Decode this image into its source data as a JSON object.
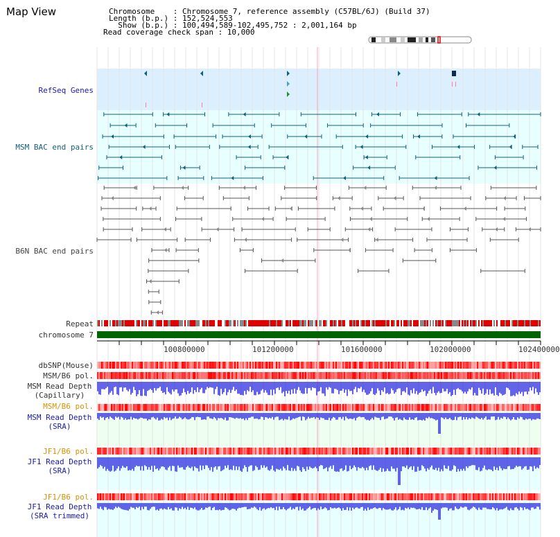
{
  "header": {
    "title": "Map View",
    "chromosome_line": "Chromosome    : Chromosome 7, reference assembly (C57BL/6J) (Build 37)",
    "length_line": "Length (b.p.) : 152,524,553",
    "show_line": "  Show (b.p.) : 100,494,589-102,495,752 : 2,001,164 bp",
    "span_line": "Read coverage check span : 10,000"
  },
  "tracks": {
    "refseq": "RefSeq Genes",
    "msm_bac": "MSM BAC end pairs",
    "b6n_bac": "B6N BAC end pairs",
    "repeat": "Repeat",
    "chromosome": "chromosome 7",
    "dbsnp": "dbSNP(Mouse)",
    "msm_b6_pol_1": "MSM/B6 pol.",
    "msm_depth_cap_1": "MSM Read Depth",
    "msm_depth_cap_2": "(Capillary)",
    "msm_b6_pol_2": "MSM/B6 pol.",
    "msm_depth_sra_1": "MSM Read Depth",
    "msm_depth_sra_2": "(SRA)",
    "jf1_b6_pol_1": "JF1/B6 pol.",
    "jf1_depth_sra_1": "JF1 Read Depth",
    "jf1_depth_sra_2": "(SRA)",
    "jf1_b6_pol_2": "JF1/B6 pol.",
    "jf1_depth_trim_1": "JF1 Read Depth",
    "jf1_depth_trim_2": "(SRA trimmed)"
  },
  "axis": {
    "ticks": [
      "100800000",
      "101200000",
      "101600000",
      "102000000",
      "102400000"
    ]
  },
  "colors": {
    "refseq_bg": "#dcefff",
    "msm_bac_bg": "#e8ffff",
    "msm_feature": "#11607a",
    "b6n_feature": "#555555",
    "repeat_red": "#e00000",
    "chromosome_green": "#006400",
    "pol_red": "#ff3030",
    "depth_blue": "#3030e0",
    "highlight": "#ff80a0"
  }
}
